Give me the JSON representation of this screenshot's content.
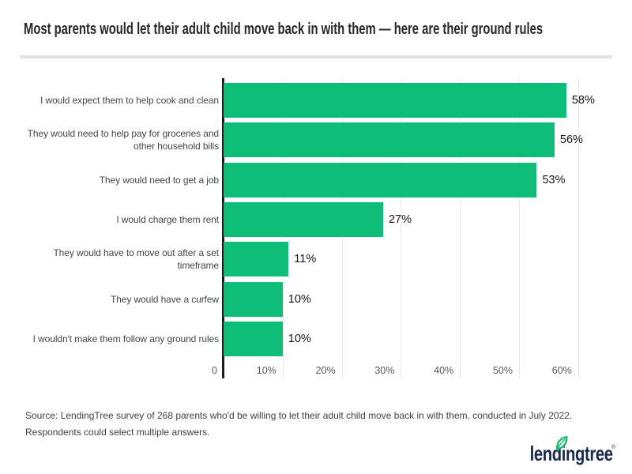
{
  "page": {
    "title": "Most parents would let their adult child move back in with them — here are their ground rules",
    "source_note": "Source: LendingTree survey of 268 parents who'd be willing to let their adult child move back in with them, conducted in July 2022. Respondents could select multiple answers.",
    "logo": {
      "text": "lendingtree",
      "registered_mark": "®",
      "navy_color": "#1b2a4c",
      "leaf_color": "#1db96e"
    }
  },
  "chart_data": {
    "type": "bar",
    "orientation": "horizontal",
    "title": "Most parents would let their adult child move back in with them — here are their ground rules",
    "categories": [
      "I would expect them to help cook and clean",
      "They would need to help pay for groceries and other household bills",
      "They would need to get a job",
      "I would charge them rent",
      "They would have to move out after a set timeframe",
      "They would have a curfew",
      "I wouldn't make them follow any ground rules"
    ],
    "values": [
      58,
      56,
      53,
      27,
      11,
      10,
      10
    ],
    "value_labels": [
      "58%",
      "56%",
      "53%",
      "27%",
      "11%",
      "10%",
      "10%"
    ],
    "xlabel": "",
    "ylabel": "",
    "xlim": [
      0,
      63
    ],
    "xticks": [
      {
        "value": 0,
        "label": "0"
      },
      {
        "value": 10,
        "label": "10%"
      },
      {
        "value": 20,
        "label": "20%"
      },
      {
        "value": 30,
        "label": "30%"
      },
      {
        "value": 40,
        "label": "40%"
      },
      {
        "value": 50,
        "label": "50%"
      },
      {
        "value": 60,
        "label": "60%"
      }
    ],
    "bar_color": "#0dbd78",
    "grid": true,
    "legend": "none"
  }
}
